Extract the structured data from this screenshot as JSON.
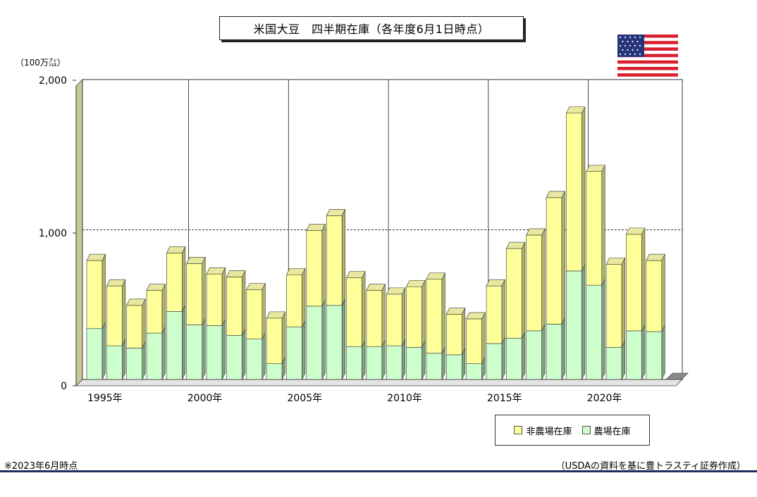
{
  "title": "米国大豆　四半期在庫（各年度6月1日時点）",
  "unit_label": "（100万㌴）",
  "note": "※2023年6月時点",
  "source": "（USDAの資料を基に豊トラスティ証券作成）",
  "legend": [
    {
      "name": "非農場在庫",
      "color": "#ffff99"
    },
    {
      "name": "農場在庫",
      "color": "#ccffcc"
    }
  ],
  "colors": {
    "off_farm": "#ffff99",
    "on_farm": "#ccffcc",
    "off_farm_side": "#b3b366",
    "on_farm_side": "#7fa37f",
    "wall": "#c8c896"
  },
  "flag_icon": "us-flag-icon",
  "chart_data": {
    "type": "bar",
    "stacked": true,
    "x": [
      1995,
      1996,
      1997,
      1998,
      1999,
      2000,
      2001,
      2002,
      2003,
      2004,
      2005,
      2006,
      2007,
      2008,
      2009,
      2010,
      2011,
      2012,
      2013,
      2014,
      2015,
      2016,
      2017,
      2018,
      2019,
      2020,
      2021,
      2022,
      2023,
      2024
    ],
    "tick_labels": [
      "1995年",
      "2000年",
      "2005年",
      "2010年",
      "2015年",
      "2020年"
    ],
    "tick_years": [
      1995,
      2000,
      2005,
      2010,
      2015,
      2020
    ],
    "series": [
      {
        "name": "農場在庫",
        "values": [
          340,
          225,
          210,
          310,
          455,
          365,
          360,
          295,
          270,
          105,
          350,
          490,
          495,
          220,
          220,
          225,
          215,
          175,
          165,
          105,
          240,
          275,
          325,
          370,
          725,
          630,
          215,
          325,
          320,
          0
        ]
      },
      {
        "name": "非農場在庫",
        "values": [
          455,
          400,
          285,
          285,
          390,
          410,
          345,
          390,
          330,
          305,
          350,
          505,
          600,
          460,
          375,
          345,
          405,
          495,
          270,
          300,
          385,
          600,
          640,
          845,
          1055,
          760,
          555,
          645,
          475,
          0
        ]
      }
    ],
    "ylim": [
      0,
      2000
    ],
    "yticks": [
      0,
      1000,
      2000
    ],
    "ytick_labels": [
      "0",
      "1,000",
      "2,000"
    ],
    "reference_line": 1000,
    "grid": "vertical lines at 5-year ticks"
  }
}
